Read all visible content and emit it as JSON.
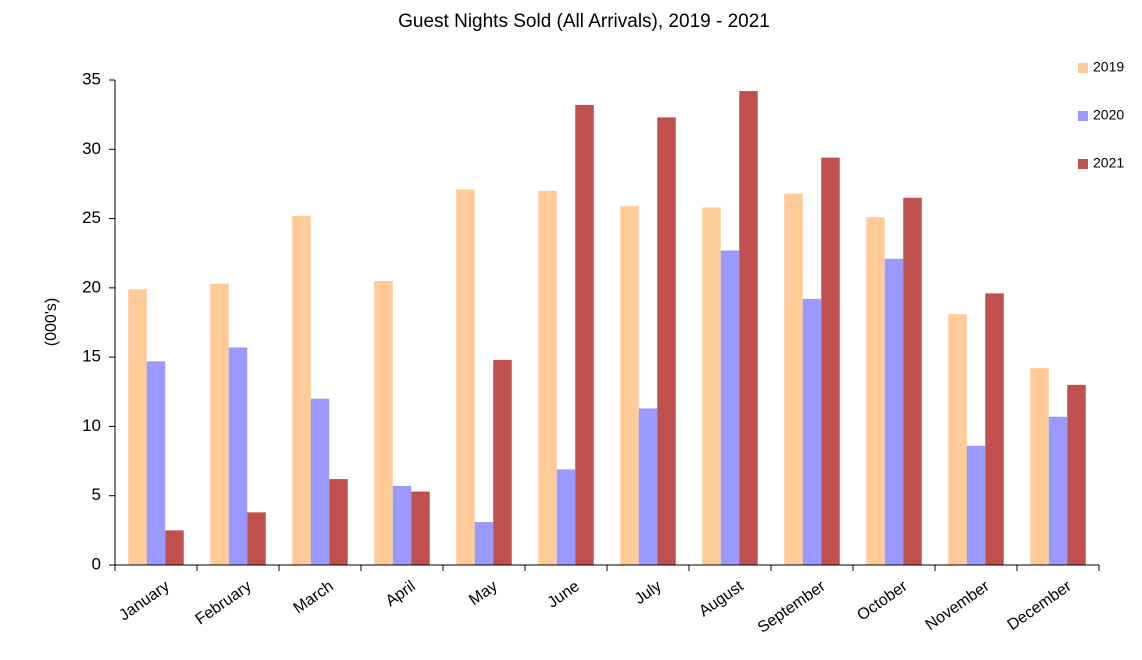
{
  "chart_data": {
    "type": "bar",
    "title": "Guest Nights Sold (All Arrivals), 2019 - 2021",
    "y_label": "(000's)",
    "categories": [
      "January",
      "February",
      "March",
      "April",
      "May",
      "June",
      "July",
      "August",
      "September",
      "October",
      "November",
      "December"
    ],
    "series": [
      {
        "name": "2019",
        "color": "#ffcc99",
        "values": [
          19.9,
          20.3,
          25.2,
          20.5,
          27.1,
          27.0,
          25.9,
          25.8,
          26.8,
          25.1,
          18.1,
          14.2
        ]
      },
      {
        "name": "2020",
        "color": "#9999ff",
        "values": [
          14.7,
          15.7,
          12.0,
          5.7,
          3.1,
          6.9,
          11.3,
          22.7,
          19.2,
          22.1,
          8.6,
          10.7
        ]
      },
      {
        "name": "2021",
        "color": "#c0504d",
        "values": [
          2.5,
          3.8,
          6.2,
          5.3,
          14.8,
          33.2,
          32.3,
          34.2,
          29.4,
          26.5,
          19.6,
          13.0
        ]
      }
    ],
    "ylim": [
      0,
      35
    ],
    "yticks": [
      0,
      5,
      10,
      15,
      20,
      25,
      30,
      35
    ],
    "grid": false,
    "legend": "top-right"
  }
}
